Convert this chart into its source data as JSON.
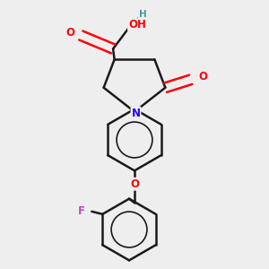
{
  "bg_color": "#eeeeee",
  "bond_color": "#1a1a1a",
  "bond_width": 1.8,
  "figsize": [
    3.0,
    3.0
  ],
  "dpi": 100,
  "atom_colors": {
    "O": "#ff0000",
    "N": "#2200ff",
    "F": "#cc44cc",
    "H": "#4a9a9a",
    "C": "#1a1a1a"
  }
}
